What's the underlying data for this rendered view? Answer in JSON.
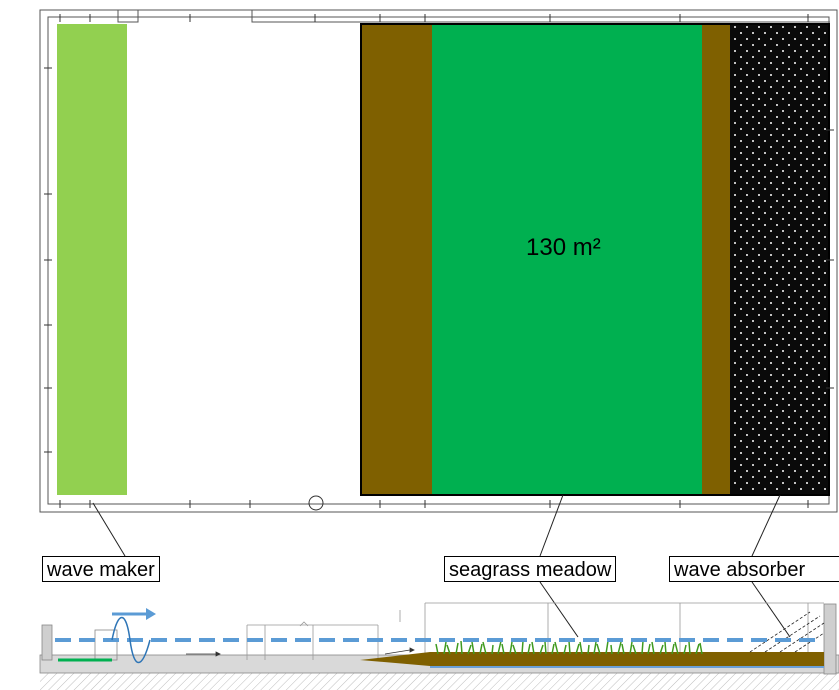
{
  "plan": {
    "area_label": "130 m²"
  },
  "labels": {
    "wave_maker": "wave maker",
    "seagrass_meadow": "seagrass meadow",
    "wave_absorber": "wave absorber"
  },
  "colors": {
    "wave_maker_zone": "#92d050",
    "sediment": "#7f6000",
    "seagrass": "#00b050",
    "absorber": "#0a0a0a",
    "water_line": "#5b9bd5",
    "wave_arrow": "#2e75b6",
    "ground": "#d9d9d9"
  }
}
